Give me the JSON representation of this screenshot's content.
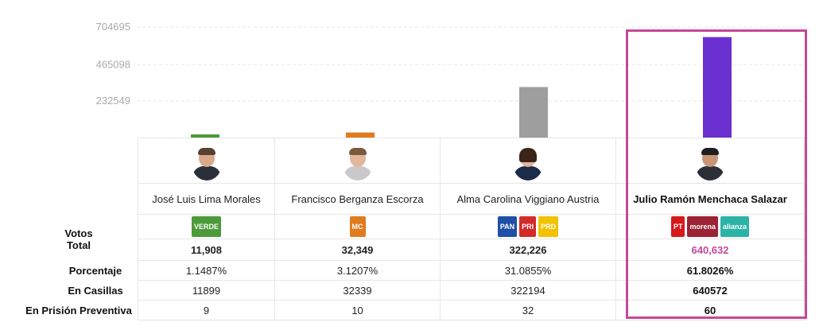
{
  "chart_data": {
    "type": "bar",
    "categories": [
      "José Luis Lima Morales",
      "Francisco Berganza Escorza",
      "Alma Carolina Viggiano Austria",
      "Julio Ramón Menchaca Salazar"
    ],
    "values": [
      11908,
      32349,
      322226,
      640632
    ],
    "colors": [
      "#4c9a3a",
      "#e07b1e",
      "#9e9e9e",
      "#6a30d0"
    ],
    "yticks": [
      232549,
      465098,
      704695
    ],
    "ylim": [
      0,
      704695
    ],
    "grid": true
  },
  "table": {
    "row_labels": {
      "votos": "Votos",
      "total": "Total",
      "porcentaje": "Porcentaje",
      "casillas": "En Casillas",
      "prision": "En Prisión Preventiva"
    },
    "candidates": [
      {
        "name": "José Luis Lima Morales",
        "total": "11,908",
        "porcentaje": "1.1487%",
        "casillas": "11899",
        "prision": "9",
        "parties": [
          {
            "icon": "verde-logo",
            "text": "VERDE",
            "color": "#4c9a3a"
          }
        ]
      },
      {
        "name": "Francisco Berganza Escorza",
        "total": "32,349",
        "porcentaje": "3.1207%",
        "casillas": "32339",
        "prision": "10",
        "parties": [
          {
            "icon": "movimiento-ciudadano-logo",
            "text": "MC",
            "color": "#e07b1e"
          }
        ]
      },
      {
        "name": "Alma Carolina Viggiano Austria",
        "total": "322,226",
        "porcentaje": "31.0855%",
        "casillas": "322194",
        "prision": "32",
        "parties": [
          {
            "icon": "pan-logo",
            "text": "PAN",
            "color": "#1f4fa6"
          },
          {
            "icon": "pri-logo",
            "text": "PRI",
            "color": "#d32a2a"
          },
          {
            "icon": "prd-logo",
            "text": "PRD",
            "color": "#f2c200"
          }
        ]
      },
      {
        "name": "Julio Ramón Menchaca Salazar",
        "total": "640,632",
        "total_color": "#c6489a",
        "porcentaje": "61.8026%",
        "casillas": "640572",
        "prision": "60",
        "parties": [
          {
            "icon": "pt-logo",
            "text": "PT",
            "color": "#d7191c"
          },
          {
            "icon": "morena-logo",
            "text": "morena",
            "color": "#9b2335"
          },
          {
            "icon": "nueva-alianza-logo",
            "text": "alianza",
            "color": "#2bb3a6"
          }
        ]
      }
    ]
  },
  "highlight_color": "#c6489a"
}
